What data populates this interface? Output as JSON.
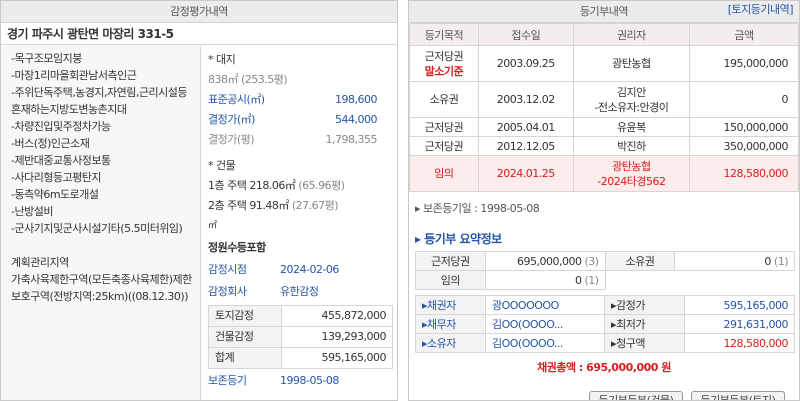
{
  "left": {
    "title": "감정평가내역",
    "address": "경기 파주시 광탄면 마장리 331-5",
    "features": [
      "-목구조모임지붕",
      "-마장1리마을회관남서측인근",
      "-주위단독주택,농경지,자연림,근리시설등혼재하는지방도변농촌지대",
      "-차량진입및주정차가능",
      "-버스(정)인근소재",
      "-제반대중교통사정보통",
      "-사다리형등고평탄지",
      "-동측약6m도로개설",
      "-난방설비",
      "-군사기지및군사시설기타(5.5미터위임)"
    ],
    "zoning": [
      "계획관리지역",
      "가축사육제한구역(모든축종사육제한)제한보호구역(전방지역:25km)((08.12.30))"
    ],
    "land": {
      "heading": "* 대지",
      "area": "838㎡",
      "pyeong": "(253.5평)",
      "rows": [
        {
          "label": "표준공시(㎡)",
          "value": "198,600"
        },
        {
          "label": "결정가(㎡)",
          "value": "544,000"
        },
        {
          "label": "결정가(평)",
          "value": "1,798,355"
        }
      ]
    },
    "building": {
      "heading": "* 건물",
      "floors": [
        {
          "text": "1층 주택 218.06㎡",
          "pyeong": "(65.96평)"
        },
        {
          "text": "2층 주택 91.48㎡",
          "pyeong": "(27.67평)"
        }
      ],
      "extra": "㎡",
      "note": "정원수등포함"
    },
    "appraisal": [
      {
        "label": "감정시점",
        "value": "2024-02-06"
      },
      {
        "label": "감정회사",
        "value": "유한감정"
      }
    ],
    "totals": [
      {
        "label": "토지감정",
        "value": "455,872,000"
      },
      {
        "label": "건물감정",
        "value": "139,293,000"
      },
      {
        "label": "합계",
        "value": "595,165,000"
      }
    ],
    "registration": {
      "label": "보존등기",
      "value": "1998-05-08"
    }
  },
  "right": {
    "title": "등기부내역",
    "link": "[토지등기내역]",
    "columns": [
      "등기목적",
      "접수일",
      "권리자",
      "금액"
    ],
    "rows": [
      {
        "purpose": "근저당권",
        "tag": "말소기준",
        "date": "2003.09.25",
        "holder": "광탄농협",
        "amount": "195,000,000"
      },
      {
        "purpose": "소유권",
        "date": "2003.12.02",
        "holder": "김지안",
        "holder_note": "-전소유자:안경이",
        "amount": "0"
      },
      {
        "purpose": "근저당권",
        "date": "2005.04.01",
        "holder": "유윤복",
        "amount": "150,000,000"
      },
      {
        "purpose": "근저당권",
        "date": "2012.12.05",
        "holder": "박진하",
        "amount": "350,000,000"
      },
      {
        "purpose": "임의",
        "date": "2024.01.25",
        "holder": "광탄농협",
        "holder_note": "-2024타경562",
        "amount": "128,580,000"
      }
    ],
    "preserved": "보존등기일 : 1998-05-08",
    "summary_title": "등기부 요약정보",
    "summary": [
      [
        {
          "label": "근저당권",
          "amount": "695,000,000",
          "count": "(3)"
        },
        {
          "label": "소유권",
          "amount": "0",
          "count": "(1)"
        }
      ],
      [
        {
          "label": "임의",
          "amount": "0",
          "count": "(1)"
        }
      ]
    ],
    "parties": [
      {
        "label": "채권자",
        "name": "광OOOOOOO",
        "price_label": "감정가",
        "price": "595,165,000"
      },
      {
        "label": "채무자",
        "name": "김OO(OOOO...",
        "price_label": "최저가",
        "price": "291,631,000"
      },
      {
        "label": "소유자",
        "name": "김OO(OOOO...",
        "price_label": "청구액",
        "price": "128,580,000"
      }
    ],
    "total": "채권총액 : 695,000,000 원",
    "buttons": [
      "등기부등본(건물)",
      "등기부등본(토지)"
    ]
  }
}
